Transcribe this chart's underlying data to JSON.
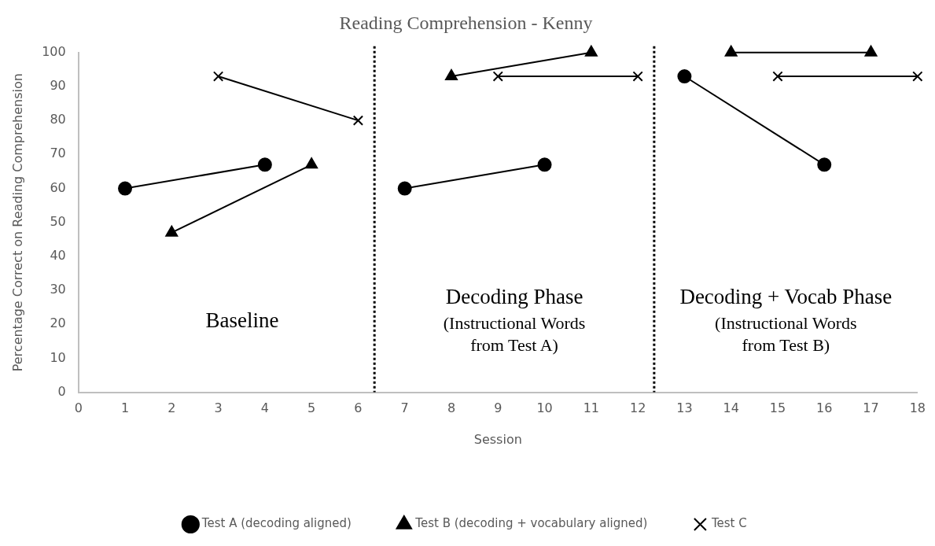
{
  "chart_data": {
    "type": "line",
    "title": "Reading Comprehension - Kenny",
    "xlabel": "Session",
    "ylabel": "Percentage Correct on Reading Comprehension",
    "xlim": [
      0,
      18
    ],
    "xticks": [
      0,
      1,
      2,
      3,
      4,
      5,
      6,
      7,
      8,
      9,
      10,
      11,
      12,
      13,
      14,
      15,
      16,
      17,
      18
    ],
    "ylim": [
      0,
      100
    ],
    "yticks": [
      0,
      10,
      20,
      30,
      40,
      50,
      60,
      70,
      80,
      90,
      100
    ],
    "grid": false,
    "legend": "bottom",
    "line_style": "solid",
    "series": [
      {
        "name": "Test A (decoding aligned)",
        "color": "#000000",
        "marker": "circle",
        "x": [
          1,
          4,
          7,
          10,
          13,
          16
        ],
        "values": [
          60,
          67,
          60,
          67,
          93,
          67
        ]
      },
      {
        "name": "Test B (decoding + vocabulary aligned)",
        "color": "#000000",
        "marker": "triangle",
        "x": [
          2,
          5,
          8,
          11,
          14,
          17
        ],
        "values": [
          47,
          67,
          93,
          100,
          100,
          100
        ]
      },
      {
        "name": "Test C",
        "color": "#000000",
        "marker": "cross",
        "x": [
          3,
          6,
          9,
          12,
          15,
          18
        ],
        "values": [
          93,
          80,
          93,
          93,
          93,
          93
        ]
      }
    ],
    "ref_lines": [
      {
        "axis": "x",
        "value": 6.35,
        "color": "#000000",
        "line_style": "dotted"
      },
      {
        "axis": "x",
        "value": 12.35,
        "color": "#000000",
        "line_style": "dotted"
      }
    ],
    "annotations": [
      "Baseline",
      "Decoding Phase\n(Instructional Words\nfrom Test A)",
      "Decoding + Vocab Phase\n(Instructional Words\nfrom Test B)"
    ]
  }
}
